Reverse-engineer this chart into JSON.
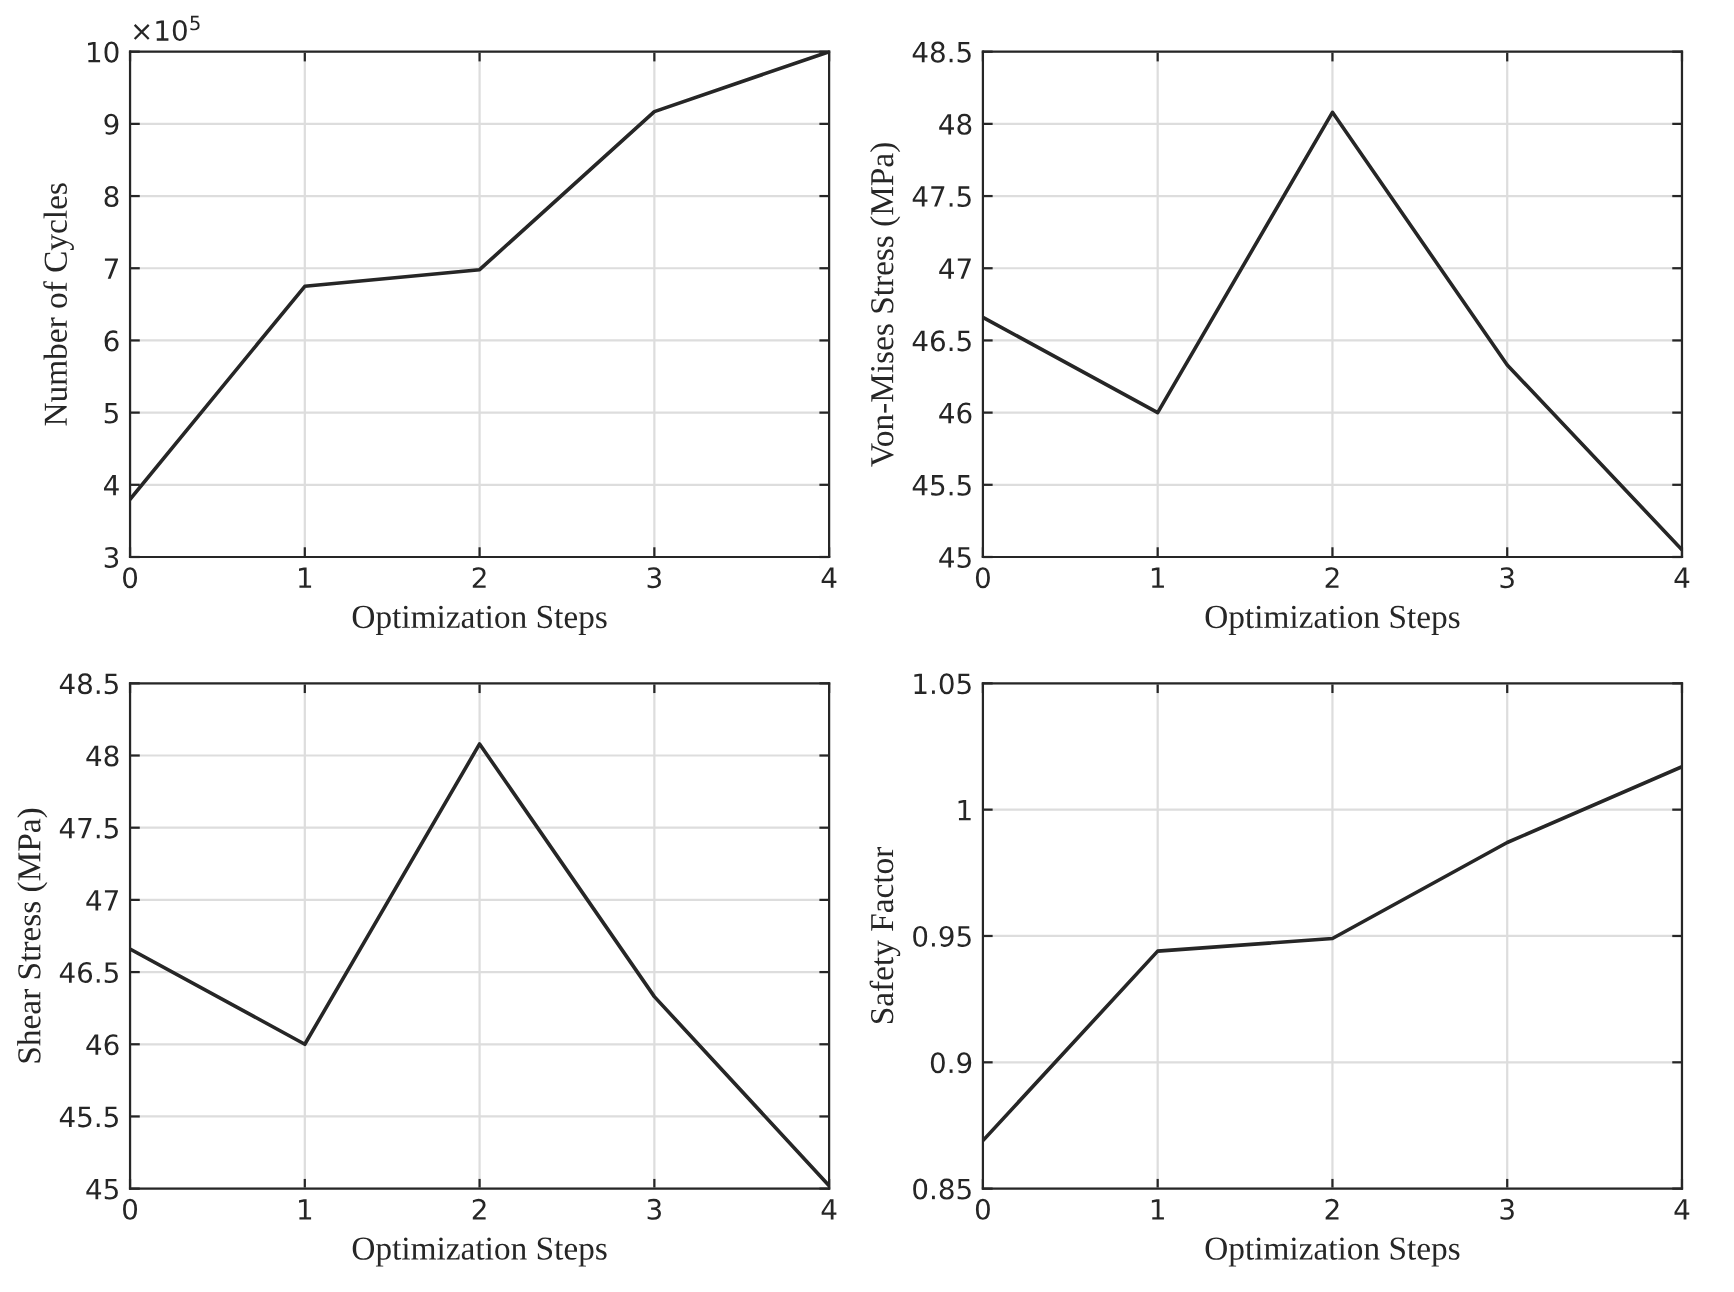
{
  "chart_data": [
    {
      "type": "line",
      "xlabel": "Optimization Steps",
      "ylabel": "Number of Cycles",
      "x": [
        0,
        1,
        2,
        3,
        4
      ],
      "series": [
        {
          "color": "#262626",
          "values": [
            3.8,
            6.75,
            6.98,
            9.17,
            10.0
          ]
        }
      ],
      "xlim": [
        0,
        4
      ],
      "xticks": [
        0,
        1,
        2,
        3,
        4
      ],
      "ylim": [
        3,
        10
      ],
      "yticks": [
        3,
        4,
        5,
        6,
        7,
        8,
        9,
        10
      ],
      "grid": true,
      "annotations": [
        "×10$^{5}$"
      ]
    },
    {
      "type": "line",
      "xlabel": "Optimization Steps",
      "ylabel": "Von-Mises Stress (MPa)",
      "x": [
        0,
        1,
        2,
        3,
        4
      ],
      "series": [
        {
          "color": "#262626",
          "values": [
            46.66,
            46.0,
            48.08,
            46.33,
            45.05
          ]
        }
      ],
      "xlim": [
        0,
        4
      ],
      "xticks": [
        0,
        1,
        2,
        3,
        4
      ],
      "ylim": [
        45,
        48.5
      ],
      "yticks": [
        45,
        45.5,
        46,
        46.5,
        47,
        47.5,
        48,
        48.5
      ],
      "grid": true
    },
    {
      "type": "line",
      "xlabel": "Optimization Steps",
      "ylabel": "Shear Stress (MPa)",
      "x": [
        0,
        1,
        2,
        3,
        4
      ],
      "series": [
        {
          "color": "#262626",
          "values": [
            46.66,
            46.0,
            48.08,
            46.33,
            45.02
          ]
        }
      ],
      "xlim": [
        0,
        4
      ],
      "xticks": [
        0,
        1,
        2,
        3,
        4
      ],
      "ylim": [
        45,
        48.5
      ],
      "yticks": [
        45,
        45.5,
        46,
        46.5,
        47,
        47.5,
        48,
        48.5
      ],
      "grid": true
    },
    {
      "type": "line",
      "xlabel": "Optimization Steps",
      "ylabel": "Safety Factor",
      "x": [
        0,
        1,
        2,
        3,
        4
      ],
      "series": [
        {
          "color": "#262626",
          "values": [
            0.869,
            0.944,
            0.949,
            0.987,
            1.017
          ]
        }
      ],
      "xlim": [
        0,
        4
      ],
      "xticks": [
        0,
        1,
        2,
        3,
        4
      ],
      "ylim": [
        0.85,
        1.05
      ],
      "yticks": [
        0.85,
        0.9,
        0.95,
        1,
        1.05
      ],
      "grid": true
    }
  ]
}
